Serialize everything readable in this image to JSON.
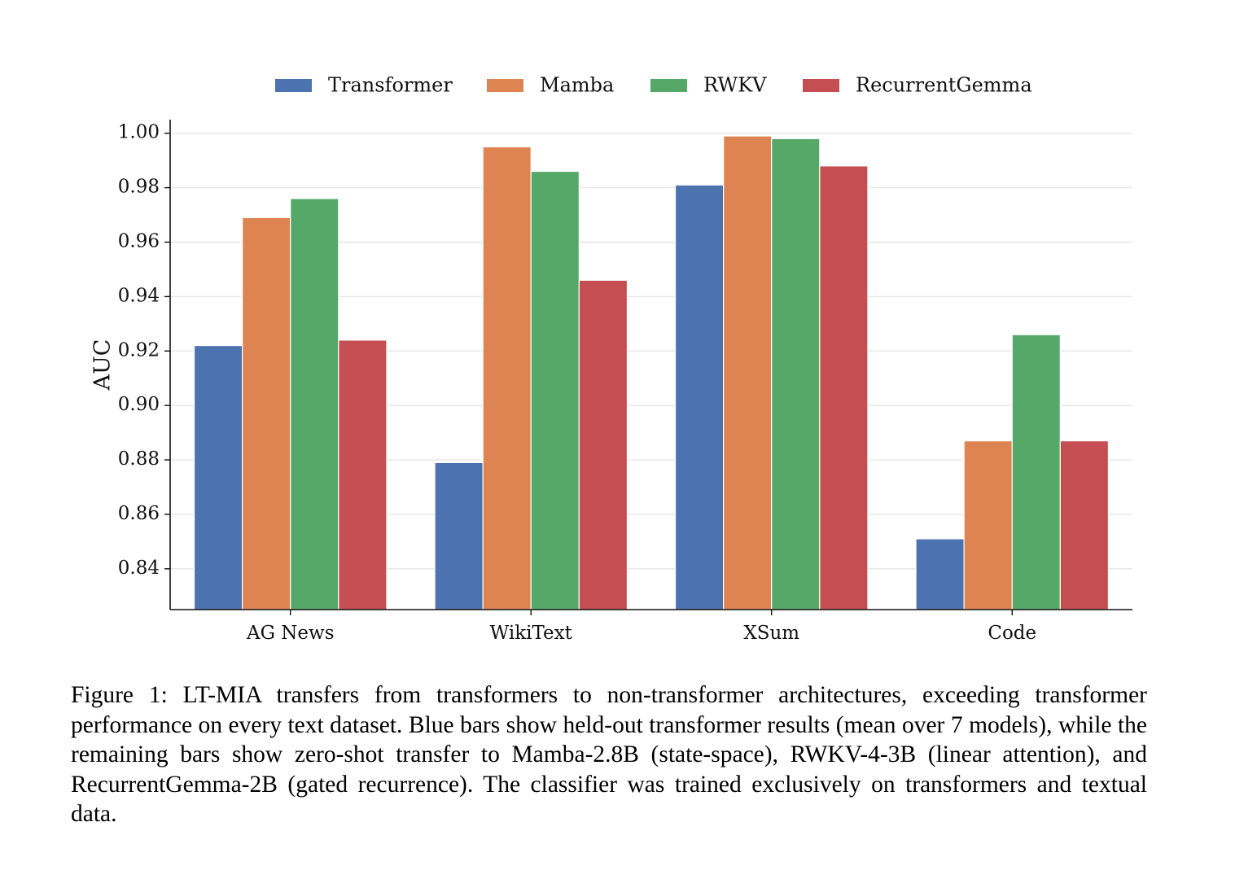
{
  "chart_data": {
    "type": "bar",
    "categories": [
      "AG News",
      "WikiText",
      "XSum",
      "Code"
    ],
    "series": [
      {
        "name": "Transformer",
        "color": "#4c72b0",
        "values": [
          0.922,
          0.879,
          0.981,
          0.851
        ]
      },
      {
        "name": "Mamba",
        "color": "#dd8452",
        "values": [
          0.969,
          0.995,
          0.999,
          0.887
        ]
      },
      {
        "name": "RWKV",
        "color": "#55a868",
        "values": [
          0.976,
          0.986,
          0.998,
          0.926
        ]
      },
      {
        "name": "RecurrentGemma",
        "color": "#c44e52",
        "values": [
          0.924,
          0.946,
          0.988,
          0.887
        ]
      }
    ],
    "ylabel": "AUC",
    "ylim": [
      0.825,
      1.005
    ],
    "yticks": [
      "0.84",
      "0.86",
      "0.88",
      "0.90",
      "0.92",
      "0.94",
      "0.96",
      "0.98",
      "1.00"
    ],
    "grid": true,
    "legend": "top-center"
  },
  "caption": "Figure 1: LT-MIA transfers from transformers to non-transformer architectures, exceeding transformer performance on every text dataset. Blue bars show held-out transformer results (mean over 7 models), while the remaining bars show zero-shot transfer to Mamba-2.8B (state-space), RWKV-4-3B (linear attention), and RecurrentGemma-2B (gated recurrence). The classifier was trained exclusively on transformers and textual data."
}
